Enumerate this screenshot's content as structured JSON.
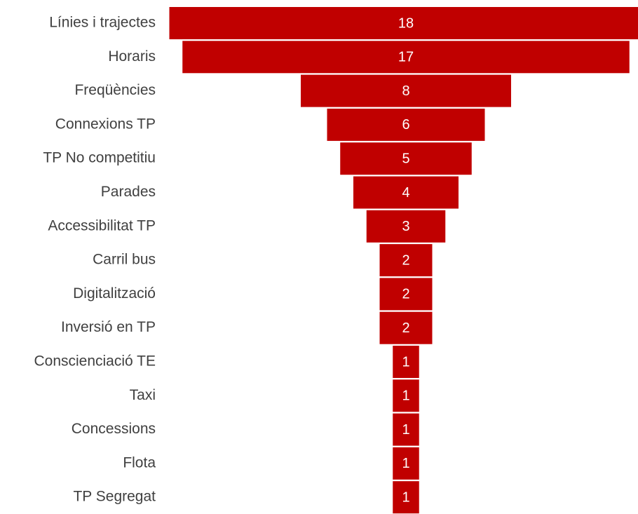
{
  "chart_data": {
    "type": "funnel",
    "categories": [
      "Línies i trajectes",
      "Horaris",
      "Freqüències",
      "Connexions TP",
      "TP No competitiu",
      "Parades",
      "Accessibilitat TP",
      "Carril bus",
      "Digitalització",
      "Inversió en TP",
      "Conscienciació TE",
      "Taxi",
      "Concessions",
      "Flota",
      "TP Segregat"
    ],
    "values": [
      18,
      17,
      8,
      6,
      5,
      4,
      3,
      2,
      2,
      2,
      1,
      1,
      1,
      1,
      1
    ],
    "color": "#c00000"
  }
}
